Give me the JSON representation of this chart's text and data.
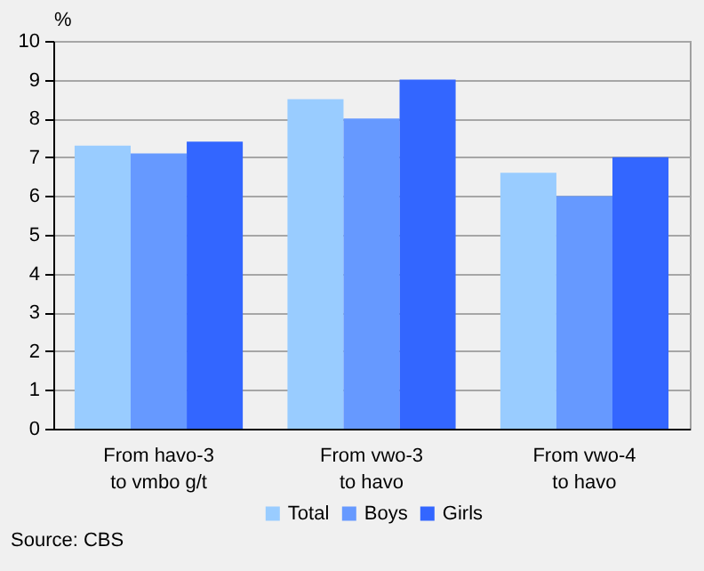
{
  "chart_data": {
    "type": "bar",
    "ylabel": "%",
    "categories": [
      "From havo-3\nto vmbo g/t",
      "From vwo-3\nto havo",
      "From vwo-4\nto havo"
    ],
    "series": [
      {
        "name": "Total",
        "color": "#99ccff",
        "values": [
          7.3,
          8.5,
          6.6
        ]
      },
      {
        "name": "Boys",
        "color": "#6699ff",
        "values": [
          7.1,
          8.0,
          6.0
        ]
      },
      {
        "name": "Girls",
        "color": "#3366ff",
        "values": [
          7.4,
          9.0,
          7.0
        ]
      }
    ],
    "ylim": [
      0,
      10
    ],
    "yticks": [
      0,
      1,
      2,
      3,
      4,
      5,
      6,
      7,
      8,
      9,
      10
    ],
    "grid": "y",
    "legend": "bottom",
    "annotations": [
      "Source: CBS"
    ]
  }
}
